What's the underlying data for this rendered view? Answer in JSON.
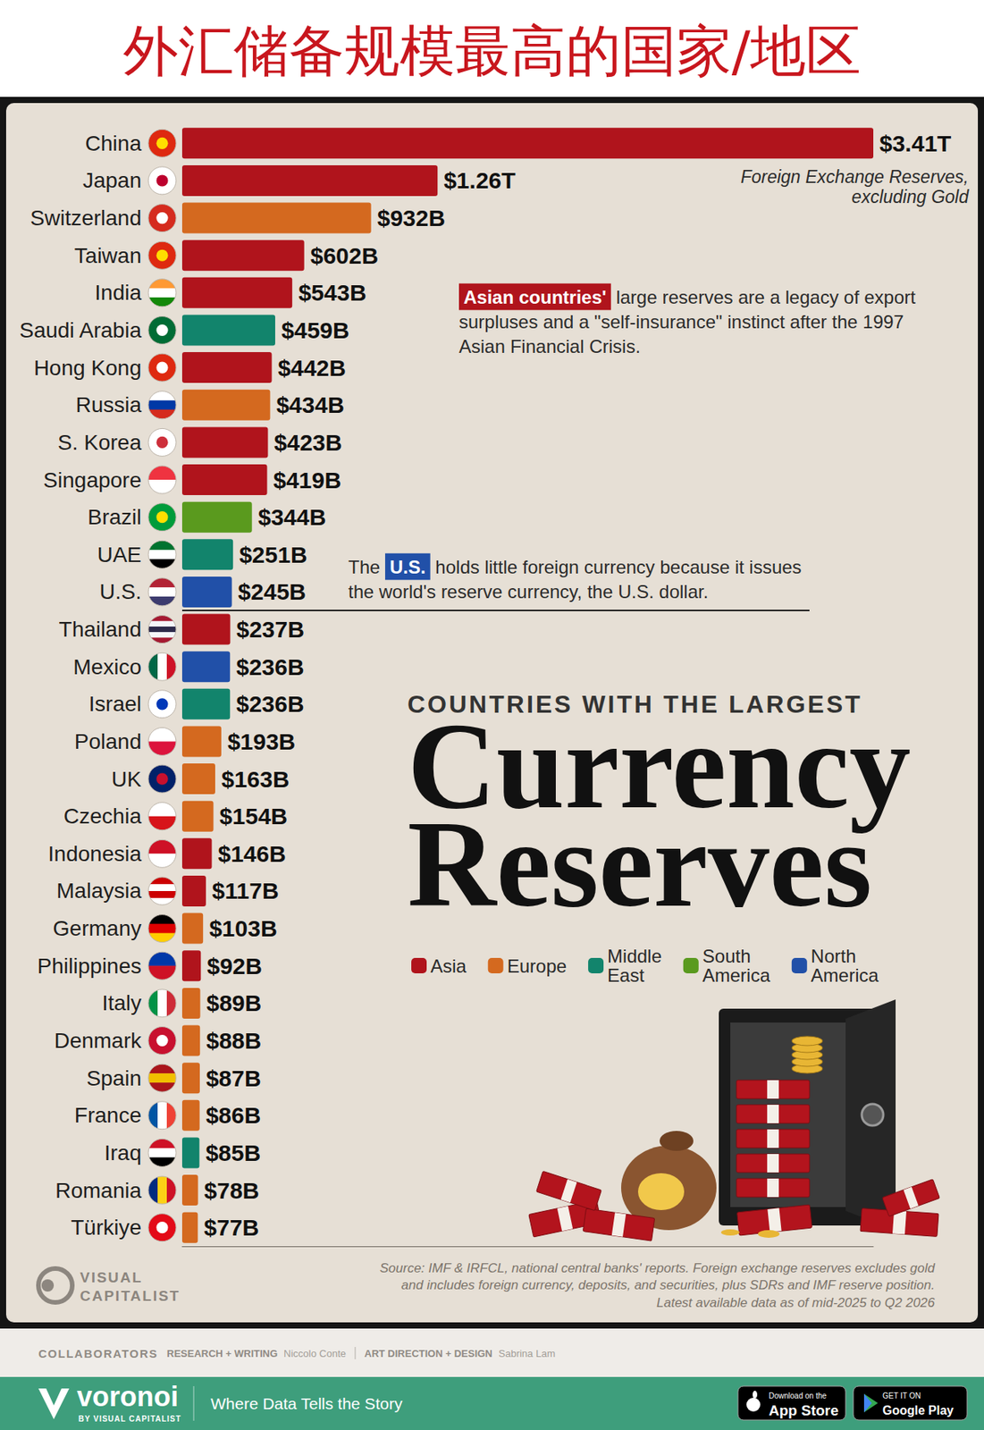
{
  "header": "外汇储备规模最高的国家/地区",
  "chart_data": {
    "type": "bar",
    "orientation": "horizontal",
    "subtitle": "COUNTRIES WITH THE LARGEST",
    "title": "Currency Reserves",
    "categories": [
      "China",
      "Japan",
      "Switzerland",
      "Taiwan",
      "India",
      "Saudi Arabia",
      "Hong Kong",
      "Russia",
      "S. Korea",
      "Singapore",
      "Brazil",
      "UAE",
      "U.S.",
      "Thailand",
      "Mexico",
      "Israel",
      "Poland",
      "UK",
      "Czechia",
      "Indonesia",
      "Malaysia",
      "Germany",
      "Philippines",
      "Italy",
      "Denmark",
      "Spain",
      "France",
      "Iraq",
      "Romania",
      "Türkiye"
    ],
    "series": [
      {
        "name": "Asia",
        "color": "#b0141c",
        "values": [
          3410,
          1260,
          null,
          602,
          543,
          null,
          442,
          null,
          423,
          419,
          null,
          null,
          null,
          237,
          null,
          null,
          null,
          null,
          null,
          146,
          117,
          null,
          92,
          null,
          null,
          null,
          null,
          null,
          null,
          null
        ],
        "value_labels": [
          "$3.41T",
          "$1.26T",
          null,
          "$602B",
          "$543B",
          null,
          "$442B",
          null,
          "$423B",
          "$419B",
          null,
          null,
          null,
          "$237B",
          null,
          null,
          null,
          null,
          null,
          "$146B",
          "$117B",
          null,
          "$92B",
          null,
          null,
          null,
          null,
          null,
          null,
          null
        ]
      },
      {
        "name": "Europe",
        "color": "#d4691f",
        "values": [
          null,
          null,
          932,
          null,
          null,
          null,
          null,
          434,
          null,
          null,
          null,
          null,
          null,
          null,
          null,
          null,
          193,
          163,
          154,
          null,
          null,
          103,
          null,
          89,
          88,
          87,
          86,
          null,
          78,
          77
        ],
        "value_labels": [
          null,
          null,
          "$932B",
          null,
          null,
          null,
          null,
          "$434B",
          null,
          null,
          null,
          null,
          null,
          null,
          null,
          null,
          "$193B",
          "$163B",
          "$154B",
          null,
          null,
          "$103B",
          null,
          "$89B",
          "$88B",
          "$87B",
          "$86B",
          null,
          "$78B",
          "$77B"
        ]
      },
      {
        "name": "Middle East",
        "color": "#12846c",
        "values": [
          null,
          null,
          null,
          null,
          null,
          459,
          null,
          null,
          null,
          null,
          null,
          251,
          null,
          null,
          null,
          236,
          null,
          null,
          null,
          null,
          null,
          null,
          null,
          null,
          null,
          null,
          null,
          85,
          null,
          null
        ],
        "value_labels": [
          null,
          null,
          null,
          null,
          null,
          "$459B",
          null,
          null,
          null,
          null,
          null,
          "$251B",
          null,
          null,
          null,
          "$236B",
          null,
          null,
          null,
          null,
          null,
          null,
          null,
          null,
          null,
          null,
          null,
          "$85B",
          null,
          null
        ]
      },
      {
        "name": "South America",
        "color": "#5a9a1e",
        "values": [
          null,
          null,
          null,
          null,
          null,
          null,
          null,
          null,
          null,
          null,
          344,
          null,
          null,
          null,
          null,
          null,
          null,
          null,
          null,
          null,
          null,
          null,
          null,
          null,
          null,
          null,
          null,
          null,
          null,
          null
        ],
        "value_labels": [
          null,
          null,
          null,
          null,
          null,
          null,
          null,
          null,
          null,
          null,
          "$344B",
          null,
          null,
          null,
          null,
          null,
          null,
          null,
          null,
          null,
          null,
          null,
          null,
          null,
          null,
          null,
          null,
          null,
          null,
          null
        ]
      },
      {
        "name": "North America",
        "color": "#2150a8",
        "values": [
          null,
          null,
          null,
          null,
          null,
          null,
          null,
          null,
          null,
          null,
          null,
          null,
          245,
          null,
          236,
          null,
          null,
          null,
          null,
          null,
          null,
          null,
          null,
          null,
          null,
          null,
          null,
          null,
          null,
          null
        ],
        "value_labels": [
          null,
          null,
          null,
          null,
          null,
          null,
          null,
          null,
          null,
          null,
          null,
          null,
          "$245B",
          null,
          "$236B",
          null,
          null,
          null,
          null,
          null,
          null,
          null,
          null,
          null,
          null,
          null,
          null,
          null,
          null,
          null
        ]
      }
    ],
    "xlim": [
      0,
      3410
    ],
    "tick_labels": "y",
    "grid": false,
    "data_labels": true,
    "legend": "right",
    "annotations": [
      {
        "text": "Foreign Exchange Reserves, excluding Gold"
      },
      {
        "highlight": "Asian countries'",
        "color": "#b0141c",
        "text": "large reserves are a legacy of export surpluses and a \"self-insurance\" instinct after the 1997 Asian Financial Crisis."
      },
      {
        "before": "The",
        "highlight": "U.S.",
        "color": "#2150a8",
        "text": "holds little foreign currency because it issues the world's reserve currency, the U.S. dollar."
      }
    ],
    "source": [
      "Source: IMF & IRFCL, national central banks' reports. Foreign exchange reserves excludes gold",
      "and includes foreign currency, deposits, and securities, plus SDRs and IMF reserve position.",
      "Latest available data as of mid-2025 to Q2 2026"
    ]
  },
  "logo": [
    "VISUAL",
    "CAPITALIST"
  ],
  "credits": {
    "label": "COLLABORATORS",
    "items": [
      {
        "role": "RESEARCH + WRITING",
        "name": "Niccolo Conte"
      },
      {
        "role": "ART DIRECTION + DESIGN",
        "name": "Sabrina Lam"
      }
    ]
  },
  "footer": {
    "brand": "voronoi",
    "brand_sub": "BY VISUAL CAPITALIST",
    "tagline": "Where Data Tells the Story",
    "badges": [
      {
        "small": "Download on the",
        "large": "App Store"
      },
      {
        "small": "GET IT ON",
        "large": "Google Play"
      }
    ]
  }
}
